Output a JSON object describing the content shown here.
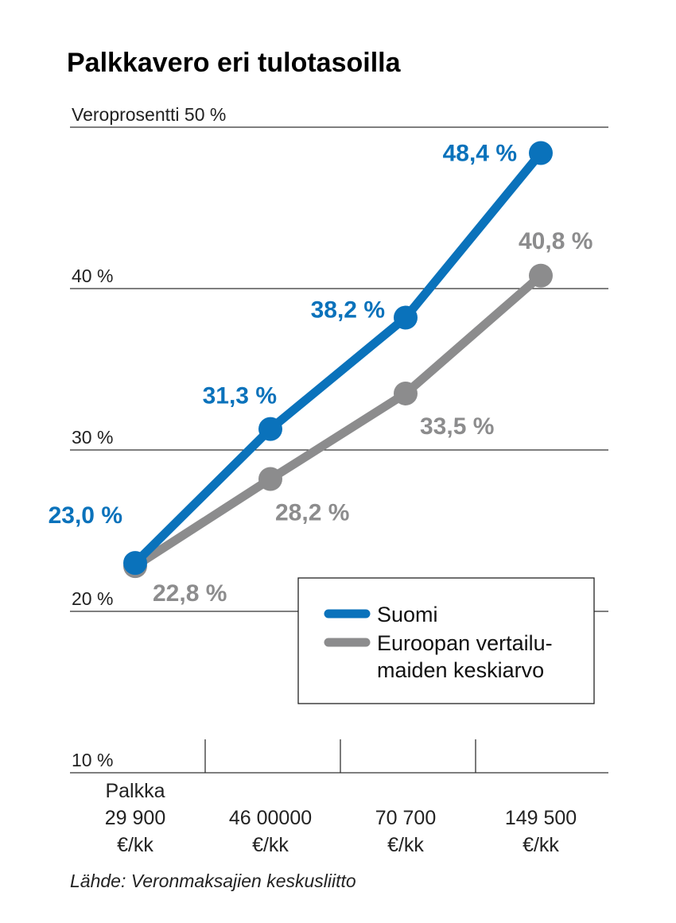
{
  "title": "Palkkavero eri tulotasoilla",
  "source": "Lähde: Veronmaksajien keskusliitto",
  "colors": {
    "suomi": "#0a72bb",
    "eurooppa": "#8c8c8d",
    "grid": "#333333"
  },
  "chart_data": {
    "type": "line",
    "title": "Palkkavero eri tulotasoilla",
    "ylabel": "Veroprosentti",
    "ylim": [
      10,
      50
    ],
    "yticks": [
      {
        "value": 50,
        "label": "Veroprosentti 50 %"
      },
      {
        "value": 40,
        "label": "40 %"
      },
      {
        "value": 30,
        "label": "30 %"
      },
      {
        "value": 20,
        "label": "20 %"
      },
      {
        "value": 10,
        "label": "10 %"
      }
    ],
    "categories": [
      "Palkka 29 900 €/kk",
      "46 00000 €/kk",
      "70 700 €/kk",
      "149 500 €/kk"
    ],
    "category_lines": [
      [
        "Palkka",
        "29 900",
        "€/kk"
      ],
      [
        "46 00000",
        "€/kk"
      ],
      [
        "70 700",
        "€/kk"
      ],
      [
        "149 500",
        "€/kk"
      ]
    ],
    "series": [
      {
        "name": "Suomi",
        "color": "#0a72bb",
        "values": [
          23.0,
          31.3,
          38.2,
          48.4
        ],
        "labels": [
          "23,0 %",
          "31,3 %",
          "38,2 %",
          "48,4 %"
        ]
      },
      {
        "name": "Euroopan vertailumaiden keskiarvo",
        "color": "#8c8c8d",
        "values": [
          22.8,
          28.2,
          33.5,
          40.8
        ],
        "labels": [
          "22,8 %",
          "28,2 %",
          "33,5 %",
          "40,8 %"
        ]
      }
    ],
    "legend": {
      "position": "bottom-right",
      "items": [
        {
          "lines": [
            "Suomi"
          ],
          "color": "#0a72bb"
        },
        {
          "lines": [
            "Euroopan vertailu-",
            "maiden keskiarvo"
          ],
          "color": "#8c8c8d"
        }
      ]
    },
    "grid": true
  }
}
